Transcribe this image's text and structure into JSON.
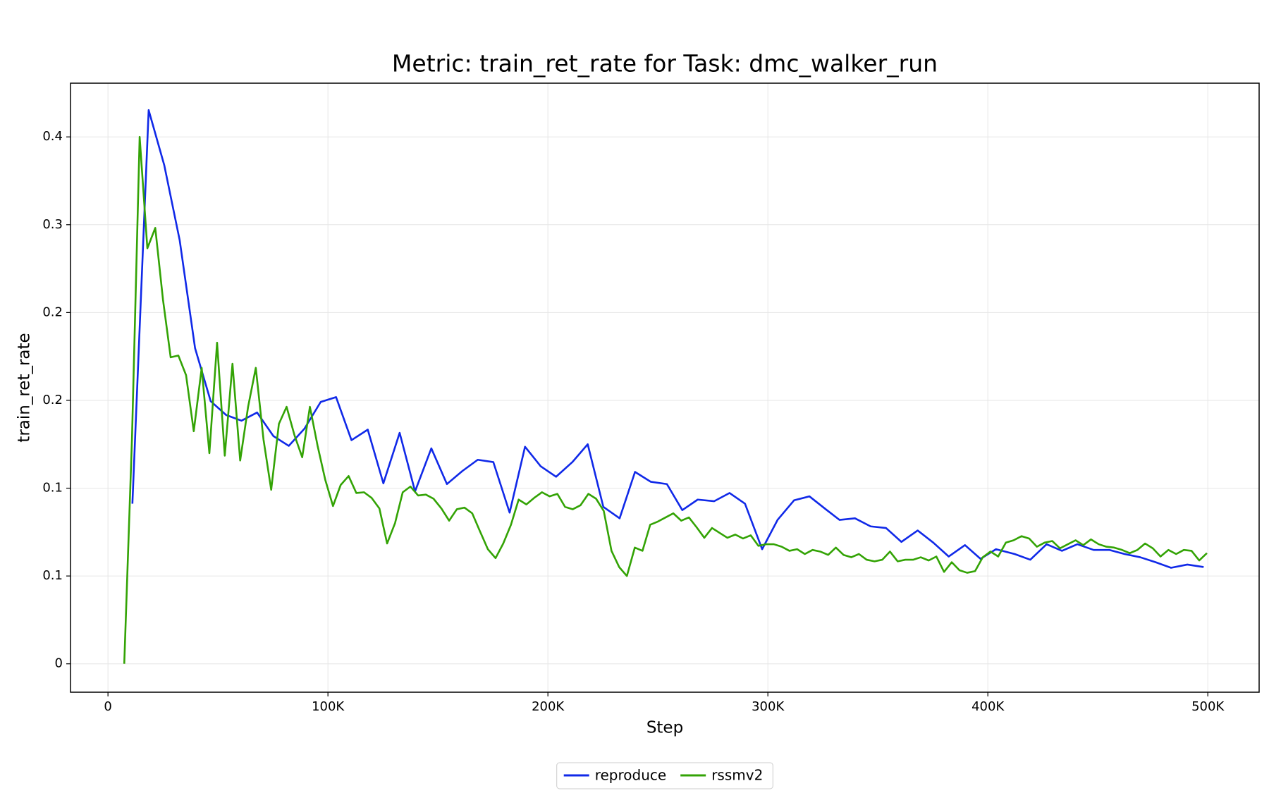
{
  "chart_data": {
    "type": "line",
    "title": "Metric: train_ret_rate for Task: dmc_walker_run",
    "x_label": "Step",
    "y_label": "train_ret_rate",
    "xlim": [
      -17037,
      523333
    ],
    "ylim": [
      -0.0194,
      0.3967
    ],
    "xticks": [
      0,
      {
        "value": 100000,
        "label": "100K"
      },
      {
        "value": 200000,
        "label": "200K"
      },
      {
        "value": 300000,
        "label": "300K"
      },
      {
        "value": 400000,
        "label": "400K"
      },
      {
        "value": 500000,
        "label": "500K"
      }
    ],
    "yticks": [
      0,
      {
        "value": 0.06,
        "label": "0.1"
      },
      {
        "value": 0.12,
        "label": "0.1"
      },
      {
        "value": 0.18,
        "label": "0.2"
      },
      {
        "value": 0.24,
        "label": "0.2"
      },
      {
        "value": 0.3,
        "label": "0.3"
      },
      {
        "value": 0.36,
        "label": "0.4"
      }
    ],
    "grid": true,
    "legend": "bottom",
    "series": [
      {
        "name": "reproduce",
        "color": "#1029e8",
        "x": [
          11100,
          18500,
          25600,
          32600,
          39600,
          46700,
          53700,
          60700,
          67800,
          75200,
          82200,
          89300,
          96700,
          103700,
          110700,
          118100,
          125200,
          132600,
          139600,
          147000,
          154100,
          161100,
          168100,
          175200,
          182600,
          189600,
          196700,
          203700,
          211100,
          218100,
          225200,
          232600,
          239600,
          246700,
          254100,
          261100,
          268100,
          275600,
          282600,
          289600,
          297400,
          304400,
          311900,
          318900,
          326300,
          332600,
          339600,
          346700,
          353700,
          360700,
          368100,
          375200,
          382200,
          389600,
          396700,
          403700,
          412200,
          419300,
          426700,
          433700,
          440700,
          448100,
          455200,
          462200,
          469300,
          476300,
          483300,
          490700,
          498100
        ],
        "values": [
          0.1094,
          0.3783,
          0.3406,
          0.2894,
          0.2156,
          0.1794,
          0.17,
          0.1661,
          0.1717,
          0.1556,
          0.1489,
          0.1606,
          0.1789,
          0.1822,
          0.1528,
          0.16,
          0.1233,
          0.1578,
          0.1178,
          0.1472,
          0.1228,
          0.1317,
          0.1394,
          0.1378,
          0.1033,
          0.1483,
          0.135,
          0.1278,
          0.1378,
          0.15,
          0.1072,
          0.0994,
          0.1311,
          0.1244,
          0.1228,
          0.105,
          0.1122,
          0.1111,
          0.1167,
          0.1094,
          0.0783,
          0.0983,
          0.1117,
          0.1144,
          0.1056,
          0.0983,
          0.0994,
          0.0939,
          0.0928,
          0.0833,
          0.0911,
          0.0828,
          0.0733,
          0.0811,
          0.0717,
          0.0783,
          0.075,
          0.0711,
          0.0817,
          0.0772,
          0.0817,
          0.0778,
          0.0778,
          0.075,
          0.0728,
          0.0694,
          0.0656,
          0.0678,
          0.0661
        ]
      },
      {
        "name": "rssmv2",
        "color": "#33a305",
        "x": [
          7400,
          10900,
          14400,
          17900,
          21500,
          25000,
          28500,
          32000,
          35500,
          39000,
          42600,
          46100,
          49600,
          53100,
          56600,
          60100,
          63700,
          67200,
          70700,
          74200,
          77700,
          81200,
          84800,
          88300,
          91800,
          95300,
          98800,
          102300,
          105800,
          109400,
          112900,
          116400,
          119900,
          123400,
          126900,
          130500,
          134000,
          137500,
          141000,
          144500,
          148000,
          151600,
          155100,
          158600,
          162100,
          165600,
          169100,
          172700,
          176200,
          179700,
          183200,
          186700,
          190200,
          193700,
          197300,
          200800,
          204300,
          207800,
          211300,
          214800,
          218400,
          221900,
          225400,
          228900,
          232400,
          235900,
          239500,
          243000,
          246500,
          250000,
          253500,
          257000,
          260600,
          264100,
          267600,
          271100,
          274600,
          278100,
          281600,
          285200,
          288700,
          292200,
          295700,
          299200,
          302700,
          306300,
          309800,
          313300,
          316800,
          320300,
          323800,
          327400,
          330900,
          334400,
          337900,
          341400,
          344900,
          348500,
          352000,
          355500,
          359000,
          362500,
          366000,
          369500,
          373100,
          376600,
          380100,
          383600,
          387100,
          390600,
          394200,
          397700,
          401200,
          404700,
          408200,
          411700,
          415300,
          418800,
          422300,
          425800,
          429300,
          432800,
          436400,
          439900,
          443400,
          446900,
          450400,
          453900,
          457400,
          461000,
          464500,
          468000,
          471500,
          475000,
          478500,
          482100,
          485600,
          489100,
          492600,
          496100,
          499600
        ],
        "values": [
          0,
          0.1533,
          0.36,
          0.2839,
          0.2978,
          0.2489,
          0.2094,
          0.2106,
          0.1972,
          0.1589,
          0.2022,
          0.1439,
          0.2194,
          0.1422,
          0.205,
          0.1389,
          0.1756,
          0.2022,
          0.1533,
          0.1189,
          0.1639,
          0.1756,
          0.1561,
          0.1411,
          0.1756,
          0.1489,
          0.1256,
          0.1078,
          0.1222,
          0.1283,
          0.1167,
          0.1172,
          0.1133,
          0.1061,
          0.0822,
          0.0961,
          0.1172,
          0.1211,
          0.115,
          0.1156,
          0.1128,
          0.1061,
          0.0978,
          0.1056,
          0.1067,
          0.1028,
          0.0906,
          0.0783,
          0.0722,
          0.0822,
          0.095,
          0.1122,
          0.1089,
          0.1133,
          0.1172,
          0.1144,
          0.1161,
          0.1072,
          0.1056,
          0.1083,
          0.1161,
          0.1128,
          0.1044,
          0.0772,
          0.0661,
          0.06,
          0.0794,
          0.0772,
          0.095,
          0.0972,
          0.1,
          0.1028,
          0.0978,
          0.1,
          0.0933,
          0.0861,
          0.0928,
          0.0894,
          0.0861,
          0.0883,
          0.0856,
          0.0878,
          0.0806,
          0.0817,
          0.0817,
          0.08,
          0.0772,
          0.0783,
          0.075,
          0.0778,
          0.0767,
          0.0744,
          0.0794,
          0.0744,
          0.0728,
          0.075,
          0.0711,
          0.07,
          0.0711,
          0.0767,
          0.07,
          0.0711,
          0.0711,
          0.0728,
          0.0706,
          0.0733,
          0.0628,
          0.0694,
          0.0639,
          0.0622,
          0.0633,
          0.0728,
          0.0767,
          0.0733,
          0.0828,
          0.0844,
          0.0872,
          0.0856,
          0.08,
          0.0828,
          0.0839,
          0.0789,
          0.0817,
          0.0844,
          0.0811,
          0.085,
          0.0817,
          0.08,
          0.0794,
          0.0778,
          0.0756,
          0.0778,
          0.0822,
          0.0789,
          0.0733,
          0.0778,
          0.075,
          0.0778,
          0.0772,
          0.0706,
          0.0756
        ]
      }
    ]
  }
}
